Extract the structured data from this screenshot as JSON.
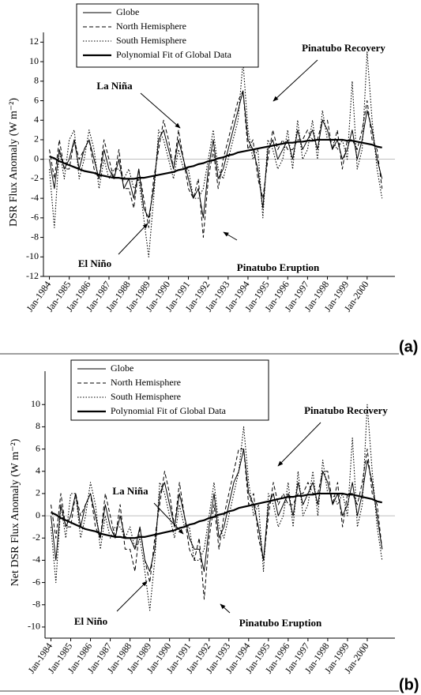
{
  "chart_data": [
    {
      "type": "line",
      "y_label": "DSR Flux Anomaly (W m⁻²)",
      "panel_label": "(a)",
      "x": [
        1984,
        1984.25,
        1984.5,
        1984.75,
        1985,
        1985.25,
        1985.5,
        1985.75,
        1986,
        1986.25,
        1986.5,
        1986.75,
        1987,
        1987.25,
        1987.5,
        1987.75,
        1988,
        1988.25,
        1988.5,
        1988.75,
        1989,
        1989.25,
        1989.5,
        1989.75,
        1990,
        1990.25,
        1990.5,
        1990.75,
        1991,
        1991.25,
        1991.5,
        1991.75,
        1992,
        1992.25,
        1992.5,
        1992.75,
        1993,
        1993.25,
        1993.5,
        1993.75,
        1994,
        1994.25,
        1994.5,
        1994.75,
        1995,
        1995.25,
        1995.5,
        1995.75,
        1996,
        1996.25,
        1996.5,
        1996.75,
        1997,
        1997.25,
        1997.5,
        1997.75,
        1998,
        1998.25,
        1998.5,
        1998.75,
        1999,
        1999.25,
        1999.5,
        1999.75,
        2000,
        2000.25,
        2000.5,
        2000.75
      ],
      "xlim": [
        1983.7,
        2001.4
      ],
      "xticks": [
        {
          "value": 1984,
          "label": "Jan-1984"
        },
        {
          "value": 1985,
          "label": "Jan-1985"
        },
        {
          "value": 1986,
          "label": "Jan-1986"
        },
        {
          "value": 1987,
          "label": "Jan-1987"
        },
        {
          "value": 1988,
          "label": "Jan-1988"
        },
        {
          "value": 1989,
          "label": "Jan-1989"
        },
        {
          "value": 1990,
          "label": "Jan-1990"
        },
        {
          "value": 1991,
          "label": "Jan-1991"
        },
        {
          "value": 1992,
          "label": "Jan-1992"
        },
        {
          "value": 1993,
          "label": "Jan-1993"
        },
        {
          "value": 1994,
          "label": "Jan-1994"
        },
        {
          "value": 1995,
          "label": "Jan-1995"
        },
        {
          "value": 1996,
          "label": "Jan-1996"
        },
        {
          "value": 1997,
          "label": "Jan-1997"
        },
        {
          "value": 1998,
          "label": "Jan-1998"
        },
        {
          "value": 1999,
          "label": "Jan-1999"
        },
        {
          "value": 2000,
          "label": "Jan-2000"
        }
      ],
      "ylim": [
        -12,
        13
      ],
      "yticks": [
        -12,
        -10,
        -8,
        -6,
        -4,
        -2,
        0,
        2,
        4,
        6,
        8,
        10,
        12
      ],
      "series": [
        {
          "name": "Globe",
          "color": "#000000",
          "line_style": "solid",
          "values": [
            0,
            -3,
            1,
            -1,
            0,
            2,
            -1,
            1,
            2,
            0,
            -2,
            1,
            -1,
            -2,
            0,
            -3,
            -2,
            -4,
            -1,
            -5,
            -6,
            -3,
            2,
            3,
            1,
            -1,
            2,
            0,
            -2,
            -4,
            -3,
            -6,
            -1,
            2,
            -2,
            -1,
            1,
            3,
            5,
            7,
            2,
            1,
            -1,
            -5,
            1,
            2,
            0,
            1,
            2,
            0,
            3,
            1,
            2,
            3,
            1,
            4,
            3,
            1,
            2,
            0,
            1,
            3,
            0,
            2,
            5,
            3,
            0,
            -2
          ]
        },
        {
          "name": "North Hemisphere",
          "color": "#000000",
          "line_style": "dashed",
          "values": [
            1,
            -2,
            2,
            -1,
            -1,
            2,
            0,
            1,
            2,
            -1,
            -2,
            2,
            0,
            -2,
            1,
            -3,
            -3,
            -5,
            -1,
            -4,
            -7,
            -2,
            1,
            4,
            2,
            -1,
            3,
            0,
            -3,
            -4,
            -2,
            -8,
            -2,
            1,
            -3,
            0,
            2,
            4,
            6,
            7,
            1,
            2,
            -2,
            -4,
            0,
            3,
            1,
            2,
            1,
            1,
            2,
            2,
            3,
            2,
            2,
            4,
            4,
            1,
            3,
            -1,
            2,
            2,
            1,
            3,
            6,
            2,
            1,
            -3
          ]
        },
        {
          "name": "South Hemisphere",
          "color": "#000000",
          "line_style": "dotted",
          "values": [
            -1,
            -7,
            1,
            -2,
            2,
            3,
            -2,
            0,
            3,
            1,
            -3,
            0,
            -2,
            -1,
            -1,
            -2,
            -1,
            -3,
            -2,
            -6,
            -10,
            -4,
            3,
            2,
            0,
            -2,
            1,
            -1,
            -1,
            -4,
            -4,
            -3,
            0,
            3,
            -1,
            -2,
            0,
            2,
            4,
            10,
            3,
            0,
            1,
            -6,
            2,
            1,
            -1,
            0,
            3,
            -1,
            4,
            0,
            1,
            4,
            0,
            5,
            2,
            2,
            1,
            2,
            0,
            8,
            -1,
            1,
            11,
            4,
            -1,
            -4
          ]
        },
        {
          "name": "Polynomial Fit of Global Data",
          "color": "#000000",
          "line_style": "thick",
          "values": [
            0.3,
            0.1,
            -0.2,
            -0.4,
            -0.6,
            -0.8,
            -1.0,
            -1.2,
            -1.3,
            -1.4,
            -1.6,
            -1.7,
            -1.8,
            -1.9,
            -1.9,
            -2.0,
            -2.0,
            -2.0,
            -1.9,
            -1.9,
            -1.8,
            -1.7,
            -1.6,
            -1.5,
            -1.4,
            -1.3,
            -1.1,
            -1.0,
            -0.8,
            -0.7,
            -0.5,
            -0.4,
            -0.2,
            -0.1,
            0.1,
            0.2,
            0.4,
            0.5,
            0.7,
            0.8,
            0.9,
            1.0,
            1.1,
            1.2,
            1.3,
            1.4,
            1.5,
            1.6,
            1.7,
            1.7,
            1.8,
            1.8,
            1.9,
            1.9,
            2.0,
            2.0,
            2.0,
            2.0,
            2.0,
            2.0,
            1.9,
            1.9,
            1.8,
            1.7,
            1.6,
            1.5,
            1.3,
            1.2
          ]
        }
      ],
      "annotations": [
        "La Niña",
        "El Niño",
        "Pinatubo Eruption",
        "Pinatubo Recovery"
      ]
    },
    {
      "type": "line",
      "y_label": "Net DSR Flux Anomaly (W m⁻²)",
      "panel_label": "(b)",
      "x": [
        1984,
        1984.25,
        1984.5,
        1984.75,
        1985,
        1985.25,
        1985.5,
        1985.75,
        1986,
        1986.25,
        1986.5,
        1986.75,
        1987,
        1987.25,
        1987.5,
        1987.75,
        1988,
        1988.25,
        1988.5,
        1988.75,
        1989,
        1989.25,
        1989.5,
        1989.75,
        1990,
        1990.25,
        1990.5,
        1990.75,
        1991,
        1991.25,
        1991.5,
        1991.75,
        1992,
        1992.25,
        1992.5,
        1992.75,
        1993,
        1993.25,
        1993.5,
        1993.75,
        1994,
        1994.25,
        1994.5,
        1994.75,
        1995,
        1995.25,
        1995.5,
        1995.75,
        1996,
        1996.25,
        1996.5,
        1996.75,
        1997,
        1997.25,
        1997.5,
        1997.75,
        1998,
        1998.25,
        1998.5,
        1998.75,
        1999,
        1999.25,
        1999.5,
        1999.75,
        2000,
        2000.25,
        2000.5,
        2000.75
      ],
      "xlim": [
        1983.7,
        2001.4
      ],
      "xticks": [
        {
          "value": 1984,
          "label": "Jan-1984"
        },
        {
          "value": 1985,
          "label": "Jan-1985"
        },
        {
          "value": 1986,
          "label": "Jan-1986"
        },
        {
          "value": 1987,
          "label": "Jan-1987"
        },
        {
          "value": 1988,
          "label": "Jan-1988"
        },
        {
          "value": 1989,
          "label": "Jan-1989"
        },
        {
          "value": 1990,
          "label": "Jan-1990"
        },
        {
          "value": 1991,
          "label": "Jan-1991"
        },
        {
          "value": 1992,
          "label": "Jan-1992"
        },
        {
          "value": 1993,
          "label": "Jan-1993"
        },
        {
          "value": 1994,
          "label": "Jan-1994"
        },
        {
          "value": 1995,
          "label": "Jan-1995"
        },
        {
          "value": 1996,
          "label": "Jan-1996"
        },
        {
          "value": 1997,
          "label": "Jan-1997"
        },
        {
          "value": 1998,
          "label": "Jan-1998"
        },
        {
          "value": 1999,
          "label": "Jan-1999"
        },
        {
          "value": 2000,
          "label": "Jan-2000"
        }
      ],
      "ylim": [
        -11,
        13
      ],
      "yticks": [
        -10,
        -8,
        -6,
        -4,
        -2,
        0,
        2,
        4,
        6,
        8,
        10
      ],
      "series": [
        {
          "name": "Globe",
          "color": "#000000",
          "line_style": "solid",
          "values": [
            0,
            -4,
            1,
            -1,
            0,
            2,
            -1,
            1,
            2,
            0,
            -2,
            1,
            -1,
            -2,
            0,
            -2,
            -2,
            -3,
            -1,
            -4,
            -5,
            -3,
            2,
            3,
            1,
            -1,
            2,
            0,
            -2,
            -3,
            -3,
            -5,
            -1,
            2,
            -2,
            -1,
            1,
            3,
            4,
            6,
            2,
            1,
            -1,
            -4,
            1,
            2,
            0,
            1,
            2,
            0,
            3,
            1,
            2,
            3,
            1,
            4,
            3,
            1,
            2,
            0,
            1,
            3,
            0,
            2,
            5,
            3,
            0,
            -3
          ]
        },
        {
          "name": "North Hemisphere",
          "color": "#000000",
          "line_style": "dashed",
          "values": [
            1,
            -2,
            2,
            -1,
            -1,
            2,
            0,
            1,
            2,
            -1,
            -2,
            2,
            0,
            -2,
            1,
            -3,
            -3,
            -5,
            -1,
            -4,
            -6,
            -2,
            1,
            4,
            2,
            -1,
            3,
            0,
            -3,
            -4,
            -2,
            -7.5,
            -2,
            1,
            -3,
            0,
            2,
            4,
            6,
            6,
            1,
            2,
            -2,
            -4,
            0,
            3,
            1,
            2,
            1,
            1,
            2,
            2,
            3,
            2,
            2,
            4,
            4,
            1,
            3,
            -1,
            2,
            2,
            1,
            3,
            6,
            2,
            1,
            -3
          ]
        },
        {
          "name": "South Hemisphere",
          "color": "#000000",
          "line_style": "dotted",
          "values": [
            -1,
            -6,
            1,
            -2,
            2,
            2,
            -2,
            0,
            3,
            1,
            -3,
            0,
            -2,
            -1,
            -1,
            -2,
            -1,
            -3,
            -2,
            -5,
            -8.5,
            -4,
            3,
            2,
            0,
            -2,
            1,
            -1,
            -1,
            -4,
            -4,
            -3,
            0,
            3,
            -1,
            -2,
            0,
            2,
            4,
            8,
            3,
            0,
            1,
            -5,
            2,
            1,
            -1,
            0,
            3,
            -1,
            4,
            0,
            1,
            4,
            0,
            5,
            2,
            2,
            1,
            2,
            0,
            7,
            -1,
            1,
            10,
            4,
            -1,
            -4
          ]
        },
        {
          "name": "Polynomial Fit of Global Data",
          "color": "#000000",
          "line_style": "thick",
          "values": [
            0.3,
            0.1,
            -0.2,
            -0.4,
            -0.6,
            -0.8,
            -1.0,
            -1.2,
            -1.3,
            -1.4,
            -1.6,
            -1.7,
            -1.8,
            -1.9,
            -1.9,
            -2.0,
            -2.0,
            -2.0,
            -1.9,
            -1.9,
            -1.8,
            -1.7,
            -1.6,
            -1.5,
            -1.4,
            -1.3,
            -1.1,
            -1.0,
            -0.8,
            -0.7,
            -0.5,
            -0.4,
            -0.2,
            -0.1,
            0.1,
            0.2,
            0.4,
            0.5,
            0.7,
            0.8,
            0.9,
            1.0,
            1.1,
            1.2,
            1.3,
            1.4,
            1.5,
            1.6,
            1.7,
            1.7,
            1.8,
            1.8,
            1.9,
            1.9,
            2.0,
            2.0,
            2.0,
            2.0,
            2.0,
            2.0,
            1.9,
            1.9,
            1.8,
            1.7,
            1.6,
            1.5,
            1.3,
            1.2
          ]
        }
      ],
      "annotations": [
        "La Niña",
        "El Niño",
        "Pinatubo Eruption",
        "Pinatubo Recovery"
      ]
    }
  ]
}
